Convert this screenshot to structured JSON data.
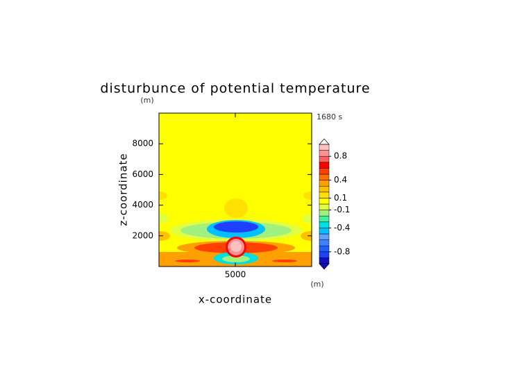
{
  "chart_data": {
    "type": "contourf",
    "title": "disturbunce of potential temperature",
    "y_unit": "(m)",
    "x_unit": "(m)",
    "time_label": "1680 s",
    "xlabel": "x-coordinate",
    "ylabel": "z-coordinate",
    "xlim": [
      0,
      10000
    ],
    "ylim": [
      0,
      10000
    ],
    "xticks": [
      5000
    ],
    "yticks": [
      2000,
      4000,
      6000,
      8000
    ],
    "colorbar": {
      "levels": [
        -1,
        -0.9,
        -0.8,
        -0.7,
        -0.6,
        -0.5,
        -0.4,
        -0.3,
        -0.2,
        -0.1,
        0,
        0.1,
        0.2,
        0.3,
        0.4,
        0.5,
        0.6,
        0.7,
        0.8,
        0.9,
        1
      ],
      "colors": [
        "#1010c0",
        "#2040ff",
        "#2060ff",
        "#4080ff",
        "#60a0ff",
        "#00c0ff",
        "#00e0e0",
        "#40f0a0",
        "#a0f080",
        "#e0ff40",
        "#ffff00",
        "#ffe000",
        "#ffc000",
        "#ffa000",
        "#ff7000",
        "#ff4000",
        "#ff0000",
        "#ff6060",
        "#ff9090",
        "#ffc0c0"
      ],
      "ticks": [
        -0.8,
        -0.4,
        -0.1,
        0.1,
        0.4,
        0.8
      ]
    }
  }
}
